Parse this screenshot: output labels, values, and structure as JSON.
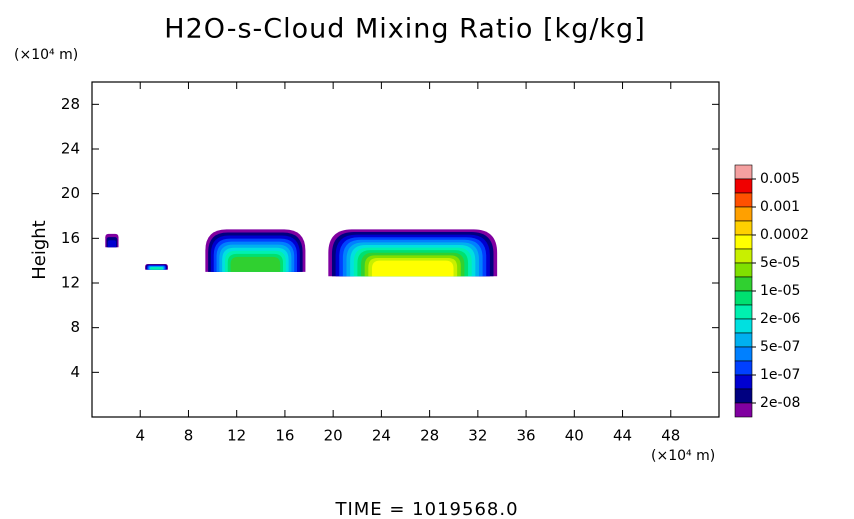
{
  "chart_data": {
    "type": "contour",
    "title": "H2O-s-Cloud Mixing Ratio [kg/kg]",
    "y_unit": "(×10⁴ m)",
    "x_unit": "(×10⁴ m)",
    "ylabel": "Height",
    "footer": "TIME = 1019568.0",
    "xlim": [
      0,
      52
    ],
    "ylim": [
      0,
      30
    ],
    "xticks": [
      4,
      8,
      12,
      16,
      20,
      24,
      28,
      32,
      36,
      40,
      44,
      48
    ],
    "yticks": [
      4,
      8,
      12,
      16,
      20,
      24,
      28
    ],
    "colorbar": {
      "colors": [
        "#f4a0a0",
        "#f00000",
        "#ff5000",
        "#ffa000",
        "#ffd000",
        "#ffff00",
        "#c8f000",
        "#80e000",
        "#30d030",
        "#00e070",
        "#00f0b0",
        "#00e0e0",
        "#00b0f0",
        "#0080ff",
        "#0040ff",
        "#0000d0",
        "#000080",
        "#8000a0"
      ],
      "ticks": [
        {
          "value": 0.005,
          "label": "0.005"
        },
        {
          "value": 0.001,
          "label": "0.001"
        },
        {
          "value": 0.0002,
          "label": "0.0002"
        },
        {
          "value": 5e-05,
          "label": "5e-05"
        },
        {
          "value": 1e-05,
          "label": "1e-05"
        },
        {
          "value": 2e-06,
          "label": "2e-06"
        },
        {
          "value": 5e-07,
          "label": "5e-07"
        },
        {
          "value": 1e-07,
          "label": "1e-07"
        },
        {
          "value": 2e-08,
          "label": "2e-08"
        }
      ]
    },
    "regions": [
      {
        "x": [
          1.1,
          2.2
        ],
        "y": [
          15.2,
          16.4
        ],
        "peak_band": 15
      },
      {
        "x": [
          4.4,
          6.3
        ],
        "y": [
          13.2,
          13.7
        ],
        "peak_band": 10
      },
      {
        "x": [
          9.4,
          17.7
        ],
        "y": [
          13.0,
          16.8
        ],
        "peak_band": 8
      },
      {
        "x": [
          19.6,
          33.6
        ],
        "y": [
          12.6,
          16.8
        ],
        "peak_band": 5
      }
    ]
  }
}
